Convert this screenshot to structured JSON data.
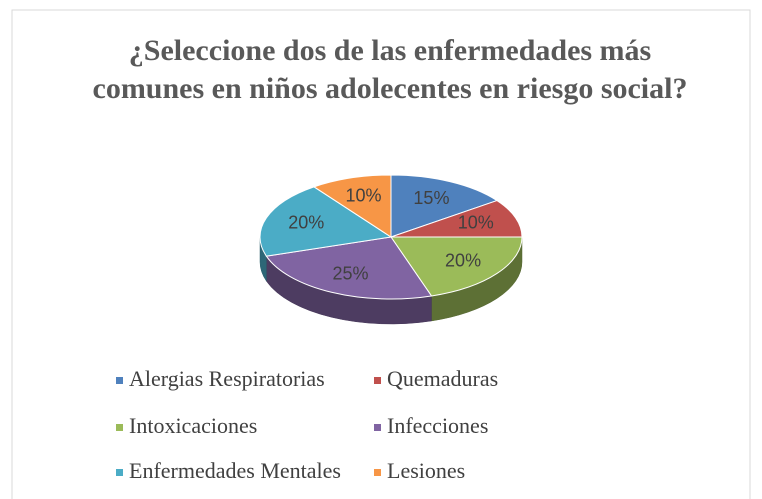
{
  "chart_data": {
    "type": "pie",
    "title": "¿Seleccione dos de las enfermedades más comunes en niños adolecentes en riesgo social?",
    "categories": [
      "Alergias Respiratorias",
      "Quemaduras",
      "Intoxicaciones",
      "Infecciones",
      "Enfermedades Mentales",
      "Lesiones"
    ],
    "values": [
      15,
      10,
      20,
      25,
      20,
      10
    ],
    "value_labels": [
      "15%",
      "10%",
      "20%",
      "25%",
      "20%",
      "10%"
    ],
    "colors": [
      "#4f81bd",
      "#c0504d",
      "#9bbb59",
      "#8064a2",
      "#4bacc6",
      "#f79646"
    ],
    "legend": "bottom"
  }
}
